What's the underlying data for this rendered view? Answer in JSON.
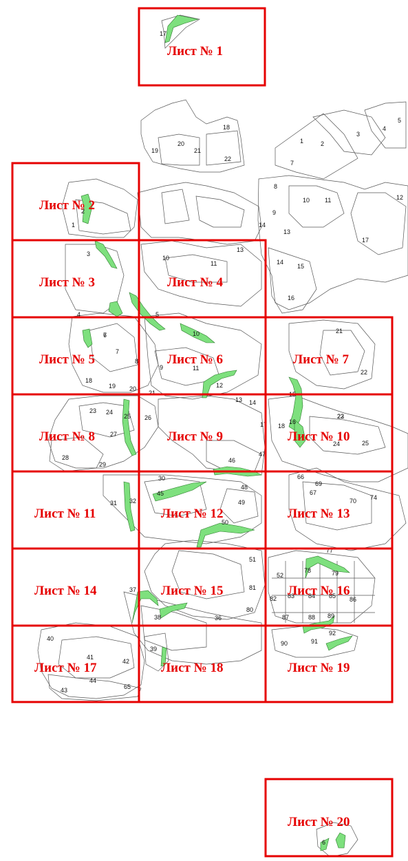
{
  "colors": {
    "sheet": "#e60000",
    "protected_strip": "#7ee07e",
    "plot_outline": "#555555"
  },
  "sheets": [
    {
      "label": "Лист № 1"
    },
    {
      "label": "Лист № 2"
    },
    {
      "label": "Лист № 3"
    },
    {
      "label": "Лист № 4"
    },
    {
      "label": "Лист № 5"
    },
    {
      "label": "Лист № 6"
    },
    {
      "label": "Лист № 7"
    },
    {
      "label": "Лист № 8"
    },
    {
      "label": "Лист № 9"
    },
    {
      "label": "Лист № 10"
    },
    {
      "label": "Лист № 11"
    },
    {
      "label": "Лист № 12"
    },
    {
      "label": "Лист № 13"
    },
    {
      "label": "Лист № 14"
    },
    {
      "label": "Лист № 15"
    },
    {
      "label": "Лист № 16"
    },
    {
      "label": "Лист № 17"
    },
    {
      "label": "Лист № 18"
    },
    {
      "label": "Лист № 19"
    },
    {
      "label": "Лист № 20"
    }
  ],
  "plot_numbers": [
    "17",
    "18",
    "19",
    "20",
    "21",
    "22",
    "1",
    "2",
    "3",
    "4",
    "5",
    "7",
    "8",
    "9",
    "10",
    "11",
    "12",
    "13",
    "14",
    "15",
    "16",
    "1",
    "2",
    "3",
    "4",
    "5",
    "6",
    "7",
    "8",
    "9",
    "10",
    "11",
    "12",
    "13",
    "14",
    "15",
    "16",
    "17",
    "18",
    "19",
    "20",
    "21",
    "22",
    "23",
    "24",
    "25",
    "26",
    "27",
    "28",
    "29",
    "30",
    "31",
    "32",
    "45",
    "46",
    "47",
    "48",
    "49",
    "50",
    "51",
    "52",
    "36",
    "37",
    "38",
    "39",
    "40",
    "41",
    "42",
    "43",
    "44",
    "65",
    "66",
    "67",
    "69",
    "70",
    "74",
    "77",
    "78",
    "79",
    "80",
    "81",
    "82",
    "83",
    "84",
    "85",
    "86",
    "87",
    "88",
    "89",
    "90",
    "91",
    "92",
    "6",
    "7",
    "10",
    "11",
    "13",
    "14",
    "17",
    "18",
    "21",
    "22",
    "23",
    "24",
    "25"
  ]
}
